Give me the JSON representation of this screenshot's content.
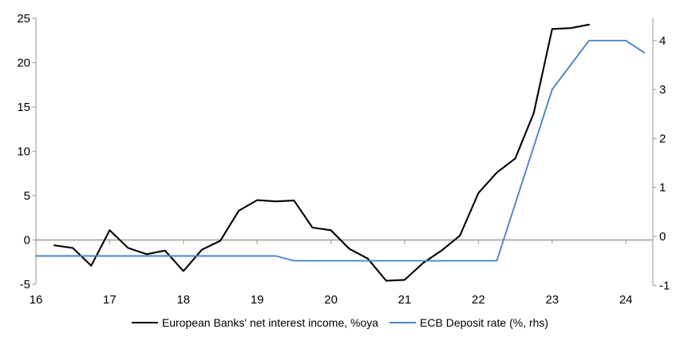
{
  "chart_data": {
    "type": "line",
    "title": "",
    "x_axis": {
      "ticks": [
        16,
        17,
        18,
        19,
        20,
        21,
        22,
        23,
        24
      ]
    },
    "left_axis": {
      "ticks": [
        -5,
        0,
        5,
        10,
        15,
        20,
        25
      ],
      "range": [
        -5,
        25
      ]
    },
    "right_axis": {
      "ticks": [
        -1,
        0,
        1,
        2,
        3,
        4
      ],
      "range": [
        -1,
        4
      ]
    },
    "grid": "zero-line-only",
    "legend_position": "bottom",
    "series": [
      {
        "name": "European Banks' net interest income, %oya",
        "axis": "left",
        "color": "#000000",
        "x": [
          16.25,
          16.5,
          16.75,
          17,
          17.25,
          17.5,
          17.75,
          18,
          18.25,
          18.5,
          18.75,
          19,
          19.25,
          19.5,
          19.75,
          20,
          20.25,
          20.5,
          20.75,
          21,
          21.25,
          21.5,
          21.75,
          22,
          22.25,
          22.5,
          22.75,
          23,
          23.25,
          23.5
        ],
        "values": [
          -0.6,
          -0.9,
          -2.9,
          1.1,
          -0.9,
          -1.6,
          -1.2,
          -3.5,
          -1.1,
          -0.1,
          3.3,
          4.5,
          4.35,
          4.45,
          1.4,
          1.1,
          -1.0,
          -2.1,
          -4.6,
          -4.5,
          -2.6,
          -1.2,
          0.5,
          5.3,
          7.6,
          9.2,
          14.3,
          23.8,
          23.9,
          24.3
        ]
      },
      {
        "name": "ECB Deposit rate (%, rhs)",
        "axis": "right",
        "color": "#4E86C5",
        "x": [
          16,
          16.25,
          16.5,
          16.75,
          17,
          17.25,
          17.5,
          17.75,
          18,
          18.25,
          18.5,
          18.75,
          19,
          19.25,
          19.5,
          19.75,
          20,
          20.25,
          20.5,
          20.75,
          21,
          21.25,
          21.5,
          21.75,
          22,
          22.25,
          22.5,
          22.75,
          23,
          23.25,
          23.5,
          23.75,
          24,
          24.25
        ],
        "values": [
          -0.4,
          -0.4,
          -0.4,
          -0.4,
          -0.4,
          -0.4,
          -0.4,
          -0.4,
          -0.4,
          -0.4,
          -0.4,
          -0.4,
          -0.4,
          -0.4,
          -0.5,
          -0.5,
          -0.5,
          -0.5,
          -0.5,
          -0.5,
          -0.5,
          -0.5,
          -0.5,
          -0.5,
          -0.5,
          -0.5,
          0.67,
          1.83,
          3.0,
          3.5,
          4.0,
          4.0,
          4.0,
          3.75
        ]
      }
    ],
    "colors": {
      "axis": "#A6A6A6",
      "zero_line": "#A6A6A6"
    }
  }
}
